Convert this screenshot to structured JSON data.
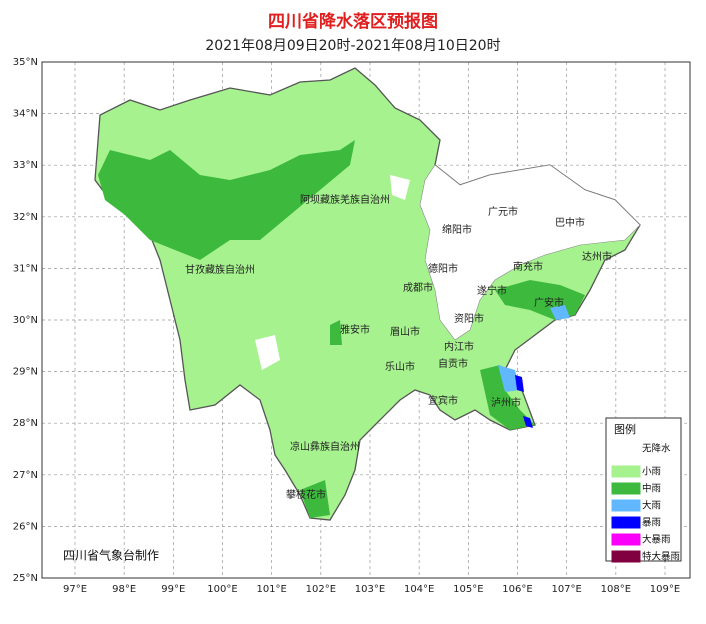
{
  "header": {
    "title": "四川省降水落区预报图",
    "subtitle": "2021年08月09日20时-2021年08月10日20时"
  },
  "axes": {
    "lat_ticks": [
      {
        "value": 25,
        "label": "25°N"
      },
      {
        "value": 26,
        "label": "26°N"
      },
      {
        "value": 27,
        "label": "27°N"
      },
      {
        "value": 28,
        "label": "28°N"
      },
      {
        "value": 29,
        "label": "29°N"
      },
      {
        "value": 30,
        "label": "30°N"
      },
      {
        "value": 31,
        "label": "31°N"
      },
      {
        "value": 32,
        "label": "32°N"
      },
      {
        "value": 33,
        "label": "33°N"
      },
      {
        "value": 34,
        "label": "34°N"
      },
      {
        "value": 35,
        "label": "35°N"
      }
    ],
    "lon_ticks": [
      {
        "value": 97,
        "label": "97°E"
      },
      {
        "value": 98,
        "label": "98°E"
      },
      {
        "value": 99,
        "label": "99°E"
      },
      {
        "value": 100,
        "label": "100°E"
      },
      {
        "value": 101,
        "label": "101°E"
      },
      {
        "value": 102,
        "label": "102°E"
      },
      {
        "value": 103,
        "label": "103°E"
      },
      {
        "value": 104,
        "label": "104°E"
      },
      {
        "value": 105,
        "label": "105°E"
      },
      {
        "value": 106,
        "label": "106°E"
      },
      {
        "value": 107,
        "label": "107°E"
      },
      {
        "value": 108,
        "label": "108°E"
      },
      {
        "value": 109,
        "label": "109°E"
      }
    ]
  },
  "cities": [
    "阿坝藏族羌族自治州",
    "甘孜藏族自治州",
    "广元市",
    "巴中市",
    "绵阳市",
    "南充市",
    "达州市",
    "德阳市",
    "成都市",
    "遂宁市",
    "广安市",
    "雅安市",
    "眉山市",
    "资阳市",
    "内江市",
    "自贡市",
    "乐山市",
    "宜宾市",
    "泸州市",
    "凉山彝族自治州",
    "攀枝花市"
  ],
  "legend": {
    "title": "图例",
    "items": [
      {
        "label": "无降水",
        "color": "#ffffff"
      },
      {
        "label": "小雨",
        "color": "#a6f28f"
      },
      {
        "label": "中雨",
        "color": "#3dba3d"
      },
      {
        "label": "大雨",
        "color": "#61b8ff"
      },
      {
        "label": "暴雨",
        "color": "#0000fe"
      },
      {
        "label": "大暴雨",
        "color": "#fa00fa"
      },
      {
        "label": "特大暴雨",
        "color": "#800040"
      }
    ]
  },
  "credit": "四川省气象台制作"
}
